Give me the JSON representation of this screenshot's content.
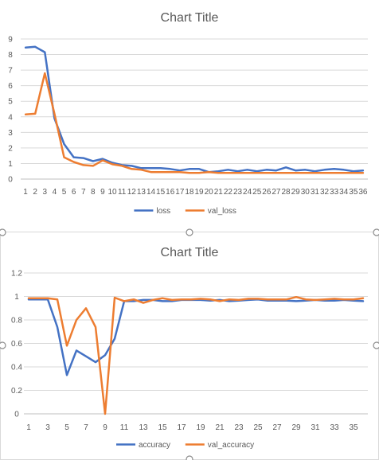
{
  "chart_data": [
    {
      "type": "line",
      "title": "Chart Title",
      "x": [
        1,
        2,
        3,
        4,
        5,
        6,
        7,
        8,
        9,
        10,
        11,
        12,
        13,
        14,
        15,
        16,
        17,
        18,
        19,
        20,
        21,
        22,
        23,
        24,
        25,
        26,
        27,
        28,
        29,
        30,
        31,
        32,
        33,
        34,
        35,
        36
      ],
      "x_tick_labels": [
        "1",
        "2",
        "3",
        "4",
        "5",
        "6",
        "7",
        "8",
        "9",
        "10",
        "11",
        "12",
        "13",
        "14",
        "15",
        "16",
        "17",
        "18",
        "19",
        "20",
        "21",
        "22",
        "23",
        "24",
        "25",
        "26",
        "27",
        "28",
        "29",
        "30",
        "31",
        "32",
        "33",
        "34",
        "35",
        "36"
      ],
      "ylim": [
        0,
        9
      ],
      "y_ticks": [
        0,
        1,
        2,
        3,
        4,
        5,
        6,
        7,
        8,
        9
      ],
      "grid": true,
      "legend_position": "bottom",
      "series": [
        {
          "name": "loss",
          "color": "#4472c4",
          "values": [
            8.45,
            8.5,
            8.15,
            3.9,
            2.25,
            1.4,
            1.35,
            1.15,
            1.3,
            1.05,
            0.9,
            0.85,
            0.7,
            0.7,
            0.7,
            0.65,
            0.55,
            0.65,
            0.65,
            0.45,
            0.5,
            0.6,
            0.5,
            0.6,
            0.5,
            0.6,
            0.55,
            0.75,
            0.55,
            0.6,
            0.5,
            0.6,
            0.65,
            0.6,
            0.5,
            0.55
          ]
        },
        {
          "name": "val_loss",
          "color": "#ed7d31",
          "values": [
            4.15,
            4.2,
            6.8,
            4.2,
            1.4,
            1.1,
            0.9,
            0.85,
            1.2,
            0.95,
            0.85,
            0.65,
            0.6,
            0.45,
            0.45,
            0.45,
            0.45,
            0.4,
            0.4,
            0.45,
            0.4,
            0.4,
            0.4,
            0.4,
            0.4,
            0.4,
            0.4,
            0.4,
            0.4,
            0.4,
            0.4,
            0.4,
            0.4,
            0.4,
            0.4,
            0.4
          ]
        }
      ]
    },
    {
      "type": "line",
      "title": "Chart Title",
      "x": [
        1,
        2,
        3,
        4,
        5,
        6,
        7,
        8,
        9,
        10,
        11,
        12,
        13,
        14,
        15,
        16,
        17,
        18,
        19,
        20,
        21,
        22,
        23,
        24,
        25,
        26,
        27,
        28,
        29,
        30,
        31,
        32,
        33,
        34,
        35,
        36
      ],
      "x_tick_labels": [
        "1",
        "3",
        "5",
        "7",
        "9",
        "11",
        "13",
        "15",
        "17",
        "19",
        "21",
        "23",
        "25",
        "27",
        "29",
        "31",
        "33",
        "35"
      ],
      "ylim": [
        0,
        1.2
      ],
      "y_ticks": [
        0,
        0.2,
        0.4,
        0.6,
        0.8,
        1,
        1.2
      ],
      "grid": true,
      "legend_position": "bottom",
      "series": [
        {
          "name": "accuracy",
          "color": "#4472c4",
          "values": [
            0.975,
            0.975,
            0.975,
            0.74,
            0.33,
            0.54,
            0.49,
            0.44,
            0.5,
            0.64,
            0.96,
            0.96,
            0.97,
            0.97,
            0.96,
            0.96,
            0.97,
            0.97,
            0.97,
            0.965,
            0.97,
            0.96,
            0.965,
            0.97,
            0.975,
            0.965,
            0.965,
            0.965,
            0.96,
            0.965,
            0.97,
            0.965,
            0.965,
            0.97,
            0.965,
            0.96
          ]
        },
        {
          "name": "val_accuracy",
          "color": "#ed7d31",
          "values": [
            0.985,
            0.985,
            0.985,
            0.975,
            0.58,
            0.8,
            0.9,
            0.74,
            0.0,
            0.99,
            0.96,
            0.975,
            0.945,
            0.97,
            0.985,
            0.97,
            0.975,
            0.975,
            0.98,
            0.975,
            0.96,
            0.975,
            0.97,
            0.98,
            0.98,
            0.975,
            0.975,
            0.975,
            0.995,
            0.975,
            0.97,
            0.975,
            0.98,
            0.975,
            0.975,
            0.985
          ]
        }
      ]
    }
  ]
}
